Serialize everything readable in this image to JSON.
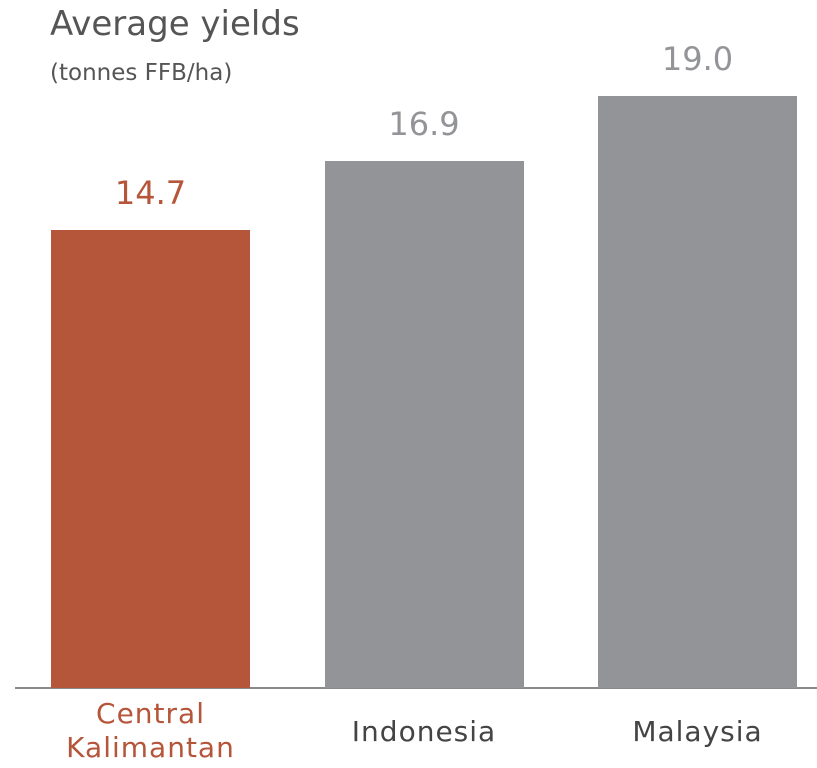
{
  "chart_data": {
    "type": "bar",
    "title": "Average yields",
    "subtitle": "(tonnes FFB/ha)",
    "categories": [
      "Central Kalimantan",
      "Indonesia",
      "Malaysia"
    ],
    "values": [
      14.7,
      16.9,
      19.0
    ],
    "value_labels": [
      "14.7",
      "16.9",
      "19.0"
    ],
    "colors": [
      "#b5553a",
      "#929497",
      "#929497"
    ],
    "label_colors": [
      "#b5553a",
      "#444444",
      "#444444"
    ]
  }
}
